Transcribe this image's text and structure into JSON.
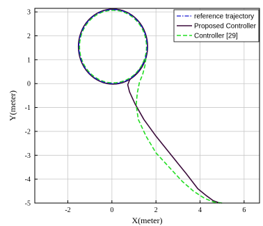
{
  "chart_data": {
    "type": "line",
    "title": "",
    "xlabel": "X(meter)",
    "ylabel": "Y(meter)",
    "xlim": [
      -3.5,
      6.7
    ],
    "ylim": [
      -5,
      3.15
    ],
    "xticks": [
      -2,
      0,
      2,
      4,
      6
    ],
    "yticks": [
      -5,
      -4,
      -3,
      -2,
      -1,
      0,
      1,
      2,
      3
    ],
    "grid": true,
    "legend_position": "top-right",
    "series": [
      {
        "name": "reference trajectory",
        "color": "#1010d0",
        "dash": "dashdot",
        "circle": {
          "cx": 0.05,
          "cy": 1.55,
          "r": 1.55
        },
        "points": []
      },
      {
        "name": "Proposed Controller",
        "color": "#3a0a3a",
        "dash": "solid",
        "circle": {
          "cx": 0.05,
          "cy": 1.55,
          "r": 1.57
        },
        "points": [
          [
            4.9,
            -5.0
          ],
          [
            4.6,
            -4.9
          ],
          [
            4.3,
            -4.7
          ],
          [
            3.9,
            -4.4
          ],
          [
            3.4,
            -3.8
          ],
          [
            2.7,
            -3.0
          ],
          [
            2.0,
            -2.2
          ],
          [
            1.45,
            -1.5
          ],
          [
            1.05,
            -0.85
          ],
          [
            0.8,
            -0.35
          ],
          [
            0.72,
            -0.05
          ],
          [
            0.8,
            0.15
          ],
          [
            0.95,
            0.3
          ],
          [
            1.15,
            0.45
          ],
          [
            1.35,
            0.72
          ],
          [
            1.5,
            1.0
          ]
        ]
      },
      {
        "name": "Controller [29]",
        "color": "#22dd22",
        "dash": "dashed",
        "circle": {
          "cx": 0.05,
          "cy": 1.55,
          "r": 1.52
        },
        "points": [
          [
            5.0,
            -5.0
          ],
          [
            4.6,
            -4.95
          ],
          [
            4.2,
            -4.8
          ],
          [
            3.7,
            -4.5
          ],
          [
            3.2,
            -4.1
          ],
          [
            2.6,
            -3.5
          ],
          [
            2.0,
            -2.9
          ],
          [
            1.55,
            -2.2
          ],
          [
            1.2,
            -1.5
          ],
          [
            1.1,
            -0.9
          ],
          [
            1.15,
            -0.4
          ],
          [
            1.25,
            0.05
          ],
          [
            1.4,
            0.4
          ],
          [
            1.5,
            0.75
          ],
          [
            1.55,
            1.1
          ]
        ]
      }
    ]
  }
}
